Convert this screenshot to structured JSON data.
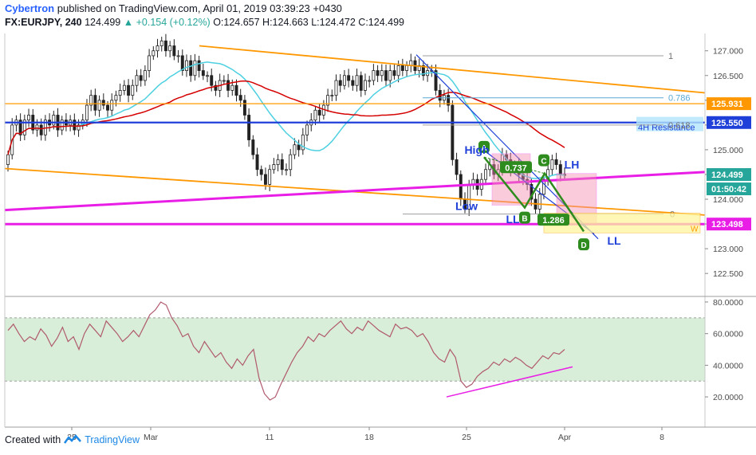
{
  "header": {
    "author": "Cybertron",
    "published_text": "published on TradingView.com, April 01, 2019 03:39:23 +0430",
    "symbol": "FX:EURJPY, 240",
    "last": "124.499",
    "change": "+0.154 (+0.12%)",
    "ohlc": "O:124.657 H:124.663 L:124.472 C:124.499"
  },
  "footer": {
    "created_with": "Created with",
    "brand": "TradingView"
  },
  "colors": {
    "bull": "#26a69a",
    "bear": "#ef5350",
    "candle": "#222222",
    "orange_trend": "#ff9800",
    "magenta_trend": "#e91ee6",
    "resistance_blue": "#1e3fd8",
    "ma_cyan": "#4dd0e1",
    "ma_red": "#d50000",
    "harmonic_green": "#2e8b1e",
    "rsi_line": "#b05a6e",
    "rsi_band": "#d8eed8"
  },
  "chart_data": [
    {
      "type": "candlestick",
      "title": "FX:EURJPY, 240",
      "price_axis": {
        "ticks": [
          "127.000",
          "126.500",
          "126.000",
          "125.500",
          "125.000",
          "124.500",
          "124.000",
          "123.500",
          "123.000",
          "122.500"
        ],
        "ylim": [
          122.1,
          127.35
        ]
      },
      "time_axis": {
        "ticks": [
          "25",
          "Mar",
          "11",
          "18",
          "25",
          "Apr",
          "8"
        ]
      },
      "close_series": [
        124.9,
        125.5,
        125.6,
        125.3,
        125.6,
        125.7,
        125.4,
        125.5,
        125.3,
        125.6,
        125.5,
        125.7,
        125.4,
        125.6,
        125.5,
        125.6,
        125.4,
        125.5,
        125.6,
        125.9,
        126.1,
        125.8,
        126.0,
        125.9,
        125.8,
        126.0,
        126.1,
        126.2,
        126.3,
        126.1,
        126.3,
        126.5,
        126.4,
        126.6,
        126.9,
        127.0,
        127.1,
        127.2,
        127.0,
        127.1,
        126.9,
        126.9,
        126.6,
        126.8,
        126.5,
        126.8,
        126.6,
        126.5,
        126.5,
        126.3,
        126.2,
        126.4,
        126.4,
        126.2,
        126.3,
        126.1,
        126.0,
        125.7,
        125.2,
        124.9,
        124.6,
        124.5,
        124.3,
        124.6,
        124.7,
        124.8,
        124.6,
        124.6,
        124.9,
        125.1,
        125.0,
        125.3,
        125.5,
        125.6,
        125.8,
        125.7,
        125.9,
        126.1,
        126.1,
        126.4,
        126.3,
        126.5,
        126.4,
        126.3,
        126.5,
        126.2,
        126.4,
        126.4,
        126.6,
        126.5,
        126.6,
        126.4,
        126.6,
        126.5,
        126.7,
        126.6,
        126.7,
        126.8,
        126.6,
        126.7,
        126.5,
        126.6,
        126.6,
        126.2,
        126.0,
        126.1,
        125.9,
        124.8,
        124.5,
        124.0,
        123.8,
        124.3,
        124.4,
        124.2,
        124.4,
        124.6,
        124.7,
        124.5,
        124.6,
        124.9,
        124.8,
        124.6,
        124.7,
        124.5,
        124.4,
        124.3,
        124.0,
        123.8,
        124.1,
        124.4,
        124.6,
        124.8,
        124.7,
        124.5,
        124.499
      ],
      "overlays": [
        {
          "name": "",
          "type": "moving_average",
          "color": "cyan"
        },
        {
          "name": "",
          "type": "moving_average",
          "color": "red"
        }
      ],
      "horizontal_levels": [
        {
          "price": "125.931",
          "color": "orange"
        },
        {
          "price": "125.550",
          "label": "4H Resistance",
          "color": "blue"
        },
        {
          "price": "123.498",
          "color": "magenta"
        }
      ],
      "price_labels": [
        "125.931",
        "125.550",
        "124.499",
        "01:50:42",
        "123.498"
      ],
      "fib_levels": [
        {
          "label": "1",
          "price": 126.9
        },
        {
          "label": "0.786",
          "price": 126.05
        },
        {
          "label": "0.618",
          "price": 125.5
        },
        {
          "label": "0",
          "price": 123.7
        }
      ],
      "annotations": [
        "High",
        "Low",
        "LL",
        "LH",
        "LL"
      ],
      "harmonic_points": [
        "A",
        "B",
        "C",
        "D"
      ],
      "harmonic_ratios": [
        "0.737",
        "1.286"
      ],
      "zone_labels": [
        "W"
      ]
    },
    {
      "type": "line",
      "title": "",
      "yticks": [
        "80.0000",
        "60.0000",
        "40.0000",
        "20.0000"
      ],
      "ylim": [
        15,
        82
      ],
      "band": [
        30,
        70
      ],
      "values": [
        62,
        66,
        60,
        55,
        58,
        56,
        63,
        59,
        52,
        57,
        64,
        55,
        58,
        50,
        60,
        66,
        62,
        58,
        68,
        64,
        60,
        55,
        58,
        62,
        58,
        65,
        72,
        75,
        80,
        78,
        70,
        65,
        58,
        60,
        52,
        48,
        55,
        50,
        45,
        48,
        42,
        38,
        44,
        40,
        46,
        50,
        32,
        22,
        18,
        20,
        28,
        35,
        42,
        48,
        52,
        58,
        55,
        60,
        58,
        62,
        65,
        68,
        63,
        60,
        64,
        62,
        68,
        65,
        62,
        60,
        58,
        66,
        63,
        64,
        62,
        58,
        60,
        55,
        48,
        44,
        42,
        50,
        45,
        30,
        26,
        28,
        33,
        36,
        38,
        42,
        40,
        44,
        42,
        45,
        43,
        40,
        38,
        42,
        46,
        44,
        48,
        47,
        50
      ]
    }
  ]
}
